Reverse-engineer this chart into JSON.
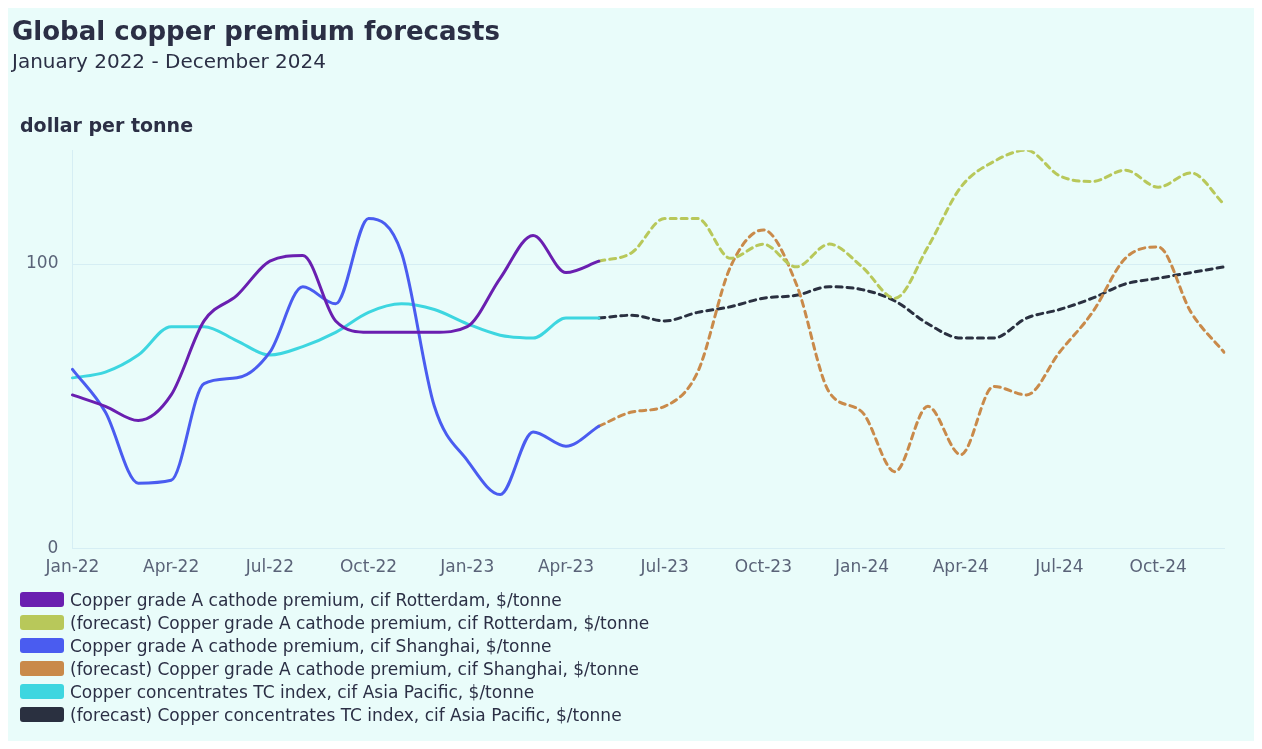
{
  "chart_data": {
    "type": "line",
    "title": "Global copper premium forecasts",
    "subtitle": "January 2022 - December 2024",
    "ylabel": "dollar per tonne",
    "categories": [
      "Jan-22",
      null,
      null,
      "Apr-22",
      null,
      null,
      "Jul-22",
      null,
      null,
      "Oct-22",
      null,
      null,
      "Jan-23",
      null,
      null,
      "Apr-23",
      null,
      null,
      "Jul-23",
      null,
      null,
      "Oct-23",
      null,
      null,
      "Jan-24",
      null,
      null,
      "Apr-24",
      null,
      null,
      "Jul-24",
      null,
      null,
      "Oct-24",
      null,
      null
    ],
    "ylim": [
      0,
      140
    ],
    "yticks": [
      0,
      100
    ],
    "grid": "y",
    "legend": "bottom",
    "marker": "none",
    "series": [
      {
        "name": "Copper grade A cathode premium, cif Rotterdam, $/tonne",
        "color": "#6a1fb0",
        "line_style": "solid",
        "values": [
          54,
          50,
          45,
          54,
          80,
          89,
          101,
          103,
          80,
          76,
          76,
          76,
          78,
          95,
          110,
          97,
          101,
          null,
          null,
          null,
          null,
          null,
          null,
          null,
          null,
          null,
          null,
          null,
          null,
          null,
          null,
          null,
          null,
          null,
          null,
          null
        ]
      },
      {
        "name": "(forecast) Copper grade A cathode premium, cif Rotterdam, $/tonne",
        "color": "#b8c85a",
        "line_style": "dashed",
        "values": [
          null,
          null,
          null,
          null,
          null,
          null,
          null,
          null,
          null,
          null,
          null,
          null,
          null,
          null,
          null,
          null,
          101,
          104,
          116,
          116,
          102,
          107,
          99,
          107,
          99,
          88,
          106,
          127,
          136,
          140,
          131,
          129,
          133,
          127,
          132,
          121
        ]
      },
      {
        "name": "Copper grade A cathode premium, cif Shanghai, $/tonne",
        "color": "#4a5cf0",
        "line_style": "solid",
        "values": [
          63,
          48,
          23,
          24,
          58,
          60,
          69,
          92,
          86,
          116,
          104,
          50,
          31,
          19,
          41,
          36,
          43,
          null,
          null,
          null,
          null,
          null,
          null,
          null,
          null,
          null,
          null,
          null,
          null,
          null,
          null,
          null,
          null,
          null,
          null,
          null
        ]
      },
      {
        "name": "(forecast) Copper grade A cathode premium, cif Shanghai, $/tonne",
        "color": "#c98a4a",
        "line_style": "dashed",
        "values": [
          null,
          null,
          null,
          null,
          null,
          null,
          null,
          null,
          null,
          null,
          null,
          null,
          null,
          null,
          null,
          null,
          43,
          48,
          50,
          62,
          99,
          112,
          93,
          55,
          48,
          27,
          50,
          33,
          57,
          54,
          69,
          83,
          102,
          106,
          83,
          69
        ]
      },
      {
        "name": "Copper concentrates TC index, cif Asia Pacific, $/tonne",
        "color": "#3dd6e0",
        "line_style": "solid",
        "values": [
          60,
          62,
          68,
          78,
          78,
          73,
          68,
          71,
          76,
          83,
          86,
          84,
          79,
          75,
          74,
          81,
          81,
          null,
          null,
          null,
          null,
          null,
          null,
          null,
          null,
          null,
          null,
          null,
          null,
          null,
          null,
          null,
          null,
          null,
          null,
          null
        ]
      },
      {
        "name": "(forecast) Copper concentrates TC index, cif Asia Pacific, $/tonne",
        "color": "#2a3040",
        "line_style": "dashed",
        "values": [
          null,
          null,
          null,
          null,
          null,
          null,
          null,
          null,
          null,
          null,
          null,
          null,
          null,
          null,
          null,
          null,
          81,
          82,
          80,
          83,
          85,
          88,
          89,
          92,
          91,
          87,
          79,
          74,
          74,
          81,
          84,
          88,
          93,
          95,
          97,
          99
        ]
      }
    ]
  }
}
